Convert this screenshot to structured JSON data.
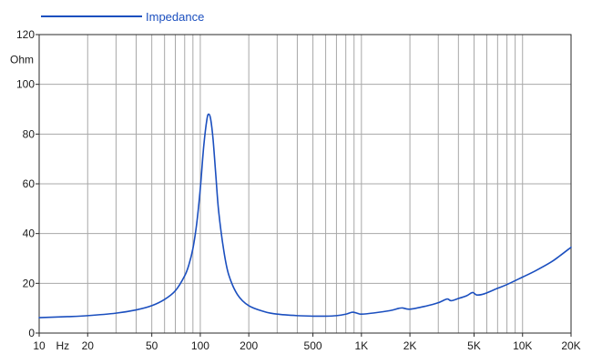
{
  "colors": {
    "series": "#1b4fbf",
    "grid": "#a8a8a8",
    "axis": "#2a2a2a",
    "text": "#1a1a1a"
  },
  "chart_data": {
    "type": "line",
    "title": "",
    "xlabel": "Hz",
    "ylabel": "Ohm",
    "xscale": "log",
    "xlim": [
      10,
      20000
    ],
    "ylim": [
      0,
      120
    ],
    "grid": true,
    "legend_position": "top-left",
    "y_ticks": [
      {
        "value": 0,
        "label": "0"
      },
      {
        "value": 20,
        "label": "20"
      },
      {
        "value": 40,
        "label": "40"
      },
      {
        "value": 60,
        "label": "60"
      },
      {
        "value": 80,
        "label": "80"
      },
      {
        "value": 100,
        "label": "100"
      },
      {
        "value": 120,
        "label": "120"
      }
    ],
    "x_ticks": [
      {
        "value": 10,
        "label": "10"
      },
      {
        "value": 20,
        "label": "20"
      },
      {
        "value": 50,
        "label": "50"
      },
      {
        "value": 100,
        "label": "100"
      },
      {
        "value": 200,
        "label": "200"
      },
      {
        "value": 500,
        "label": "500"
      },
      {
        "value": 1000,
        "label": "1K"
      },
      {
        "value": 2000,
        "label": "2K"
      },
      {
        "value": 5000,
        "label": "5K"
      },
      {
        "value": 10000,
        "label": "10K"
      },
      {
        "value": 20000,
        "label": "20K"
      }
    ],
    "series": [
      {
        "name": "Impedance",
        "x": [
          10,
          15,
          20,
          30,
          40,
          50,
          60,
          70,
          80,
          85,
          90,
          95,
          100,
          105,
          110,
          113,
          116,
          120,
          125,
          130,
          140,
          150,
          170,
          200,
          250,
          300,
          400,
          500,
          600,
          700,
          800,
          880,
          950,
          1000,
          1200,
          1500,
          1700,
          1800,
          2000,
          2500,
          3000,
          3400,
          3600,
          4000,
          4500,
          4900,
          5200,
          5800,
          7000,
          8000,
          10000,
          12000,
          15000,
          17000,
          20000
        ],
        "values": [
          6.2,
          6.6,
          7.0,
          8.0,
          9.3,
          11.0,
          13.5,
          17.0,
          23.0,
          27.5,
          34.0,
          44.0,
          58.0,
          75.0,
          86.0,
          88.0,
          86.0,
          78.0,
          63.0,
          49.0,
          33.0,
          23.5,
          15.5,
          11.0,
          8.6,
          7.6,
          7.0,
          6.8,
          6.8,
          7.0,
          7.6,
          8.4,
          7.9,
          7.6,
          8.1,
          9.0,
          9.9,
          10.1,
          9.6,
          10.8,
          12.2,
          13.7,
          13.0,
          13.9,
          15.0,
          16.3,
          15.3,
          15.8,
          18.0,
          19.5,
          22.5,
          25.0,
          28.5,
          31.0,
          34.5
        ]
      }
    ]
  }
}
